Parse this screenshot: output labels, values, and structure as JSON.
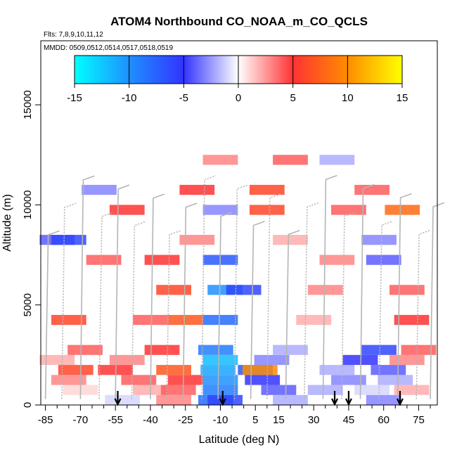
{
  "chart_data": {
    "type": "heatmap",
    "title": "ATOM4 Northbound CO_NOAA_m_CO_QCLS",
    "flights_note": "Flts: 7,8,9,10,11,12",
    "dates_note": "MMDD: 0509,0512,0514,0517,0518,0519",
    "xlabel": "Latitude (deg N)",
    "ylabel": "Altitude (m)",
    "xlim": [
      -87,
      83
    ],
    "ylim": [
      0,
      18200
    ],
    "x_ticks": [
      -85,
      -70,
      -55,
      -40,
      -25,
      -10,
      5,
      15,
      30,
      45,
      60,
      75
    ],
    "x_minor_ticks": [
      -80,
      -75,
      -65,
      -60,
      -50,
      -45,
      -35,
      -30,
      -20,
      -15,
      -5,
      0,
      10,
      20,
      25,
      35,
      40,
      50,
      55,
      65,
      70,
      80
    ],
    "y_ticks": [
      0,
      5000,
      10000,
      15000
    ],
    "colorbar": {
      "min": -15,
      "max": 15,
      "ticks": [
        -15,
        -10,
        -5,
        0,
        5,
        10,
        15
      ],
      "colors": [
        "#00ffff",
        "#1e90ff",
        "#3333ff",
        "#ffffff",
        "#ff3333",
        "#ff8c00",
        "#ffff00"
      ]
    },
    "arrow_latitudes": [
      -54,
      -9,
      39,
      45,
      67
    ],
    "cells": [
      {
        "lat": -52,
        "alt": 250,
        "v": -1
      },
      {
        "lat": -30,
        "alt": 250,
        "v": 3
      },
      {
        "lat": -12,
        "alt": 250,
        "v": -8
      },
      {
        "lat": -8,
        "alt": 250,
        "v": -6
      },
      {
        "lat": 20,
        "alt": 250,
        "v": -2
      },
      {
        "lat": 60,
        "alt": 250,
        "v": -3
      },
      {
        "lat": -70,
        "alt": 750,
        "v": 1
      },
      {
        "lat": -40,
        "alt": 750,
        "v": 2
      },
      {
        "lat": -28,
        "alt": 750,
        "v": 4
      },
      {
        "lat": -10,
        "alt": 750,
        "v": -9
      },
      {
        "lat": 15,
        "alt": 750,
        "v": -4
      },
      {
        "lat": 35,
        "alt": 750,
        "v": -2
      },
      {
        "lat": 55,
        "alt": 750,
        "v": -1
      },
      {
        "lat": 72,
        "alt": 750,
        "v": 2
      },
      {
        "lat": -75,
        "alt": 1250,
        "v": 3
      },
      {
        "lat": -45,
        "alt": 1250,
        "v": 4
      },
      {
        "lat": -25,
        "alt": 1250,
        "v": 5
      },
      {
        "lat": -10,
        "alt": 1250,
        "v": -10
      },
      {
        "lat": 8,
        "alt": 1250,
        "v": -5
      },
      {
        "lat": 45,
        "alt": 1250,
        "v": -3
      },
      {
        "lat": 65,
        "alt": 1250,
        "v": -2
      },
      {
        "lat": -72,
        "alt": 1750,
        "v": 6
      },
      {
        "lat": -55,
        "alt": 1750,
        "v": 5
      },
      {
        "lat": -30,
        "alt": 1750,
        "v": 7
      },
      {
        "lat": -11,
        "alt": 1750,
        "v": -11
      },
      {
        "lat": 5,
        "alt": 1750,
        "v": -7
      },
      {
        "lat": 7,
        "alt": 1750,
        "v": 10
      },
      {
        "lat": 40,
        "alt": 1750,
        "v": -2
      },
      {
        "lat": 62,
        "alt": 1750,
        "v": -4
      },
      {
        "lat": -80,
        "alt": 2250,
        "v": 2
      },
      {
        "lat": -50,
        "alt": 2250,
        "v": 3
      },
      {
        "lat": -10,
        "alt": 2250,
        "v": -12
      },
      {
        "lat": 12,
        "alt": 2250,
        "v": -3
      },
      {
        "lat": 50,
        "alt": 2250,
        "v": -5
      },
      {
        "lat": 70,
        "alt": 2250,
        "v": 3
      },
      {
        "lat": -68,
        "alt": 2750,
        "v": 4
      },
      {
        "lat": -35,
        "alt": 2750,
        "v": 5
      },
      {
        "lat": -12,
        "alt": 2750,
        "v": -9
      },
      {
        "lat": 20,
        "alt": 2750,
        "v": -2
      },
      {
        "lat": 58,
        "alt": 2750,
        "v": -6
      },
      {
        "lat": 75,
        "alt": 2750,
        "v": 4
      },
      {
        "lat": -75,
        "alt": 4250,
        "v": 6
      },
      {
        "lat": -40,
        "alt": 4250,
        "v": 4
      },
      {
        "lat": -25,
        "alt": 4250,
        "v": 7
      },
      {
        "lat": -10,
        "alt": 4250,
        "v": -8
      },
      {
        "lat": 30,
        "alt": 4250,
        "v": 2
      },
      {
        "lat": 72,
        "alt": 4250,
        "v": 5
      },
      {
        "lat": -30,
        "alt": 5750,
        "v": 6
      },
      {
        "lat": -8,
        "alt": 5750,
        "v": -10
      },
      {
        "lat": 0,
        "alt": 5750,
        "v": -6
      },
      {
        "lat": 35,
        "alt": 5750,
        "v": 3
      },
      {
        "lat": 70,
        "alt": 5750,
        "v": 4
      },
      {
        "lat": -60,
        "alt": 7250,
        "v": 4
      },
      {
        "lat": -35,
        "alt": 7250,
        "v": 5
      },
      {
        "lat": -10,
        "alt": 7250,
        "v": -7
      },
      {
        "lat": 40,
        "alt": 7250,
        "v": 3
      },
      {
        "lat": 60,
        "alt": 7250,
        "v": -4
      },
      {
        "lat": -80,
        "alt": 8250,
        "v": -4
      },
      {
        "lat": -75,
        "alt": 8250,
        "v": -6
      },
      {
        "lat": -20,
        "alt": 8250,
        "v": 3
      },
      {
        "lat": 20,
        "alt": 8250,
        "v": 2
      },
      {
        "lat": 58,
        "alt": 8250,
        "v": -3
      },
      {
        "lat": -50,
        "alt": 9750,
        "v": 5
      },
      {
        "lat": -10,
        "alt": 9750,
        "v": -3
      },
      {
        "lat": 10,
        "alt": 9750,
        "v": 6
      },
      {
        "lat": 45,
        "alt": 9750,
        "v": 4
      },
      {
        "lat": 68,
        "alt": 9750,
        "v": 8
      },
      {
        "lat": -62,
        "alt": 10750,
        "v": -3
      },
      {
        "lat": -20,
        "alt": 10750,
        "v": 5
      },
      {
        "lat": 10,
        "alt": 10750,
        "v": 6
      },
      {
        "lat": 55,
        "alt": 10750,
        "v": 4
      },
      {
        "lat": -10,
        "alt": 12250,
        "v": 3
      },
      {
        "lat": 20,
        "alt": 12250,
        "v": 4
      },
      {
        "lat": 40,
        "alt": 12250,
        "v": -2
      }
    ]
  }
}
